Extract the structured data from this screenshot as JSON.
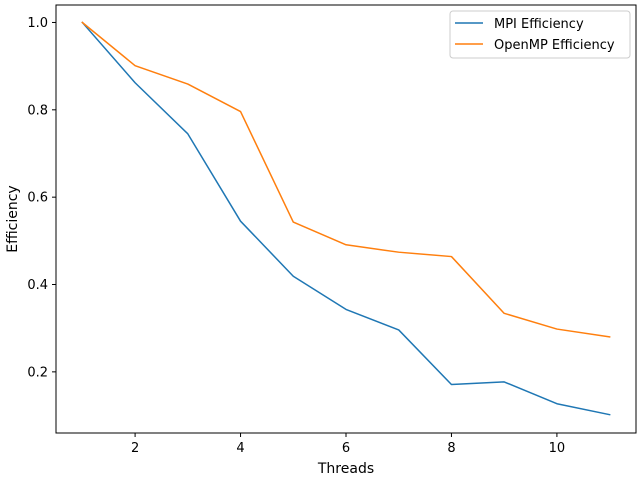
{
  "chart_data": {
    "type": "line",
    "title": "",
    "xlabel": "Threads",
    "ylabel": "Efficiency",
    "xlim": [
      0.5,
      11.5
    ],
    "ylim": [
      0.06,
      1.04
    ],
    "xticks": [
      2,
      4,
      6,
      8,
      10
    ],
    "yticks": [
      0.2,
      0.4,
      0.6,
      0.8,
      1.0
    ],
    "ytick_labels": [
      "0.2",
      "0.4",
      "0.6",
      "0.8",
      "1.0"
    ],
    "grid": false,
    "legend_position": "top-right",
    "x": [
      1,
      2,
      3,
      4,
      5,
      6,
      7,
      8,
      9,
      10,
      11
    ],
    "series": [
      {
        "name": "MPI Efficiency",
        "color": "#1f77b4",
        "values": [
          1.0,
          0.862,
          0.745,
          0.545,
          0.419,
          0.343,
          0.296,
          0.171,
          0.177,
          0.127,
          0.102
        ]
      },
      {
        "name": "OpenMP Efficiency",
        "color": "#ff7f0e",
        "values": [
          1.0,
          0.901,
          0.859,
          0.796,
          0.543,
          0.491,
          0.474,
          0.464,
          0.334,
          0.298,
          0.28
        ]
      }
    ]
  }
}
